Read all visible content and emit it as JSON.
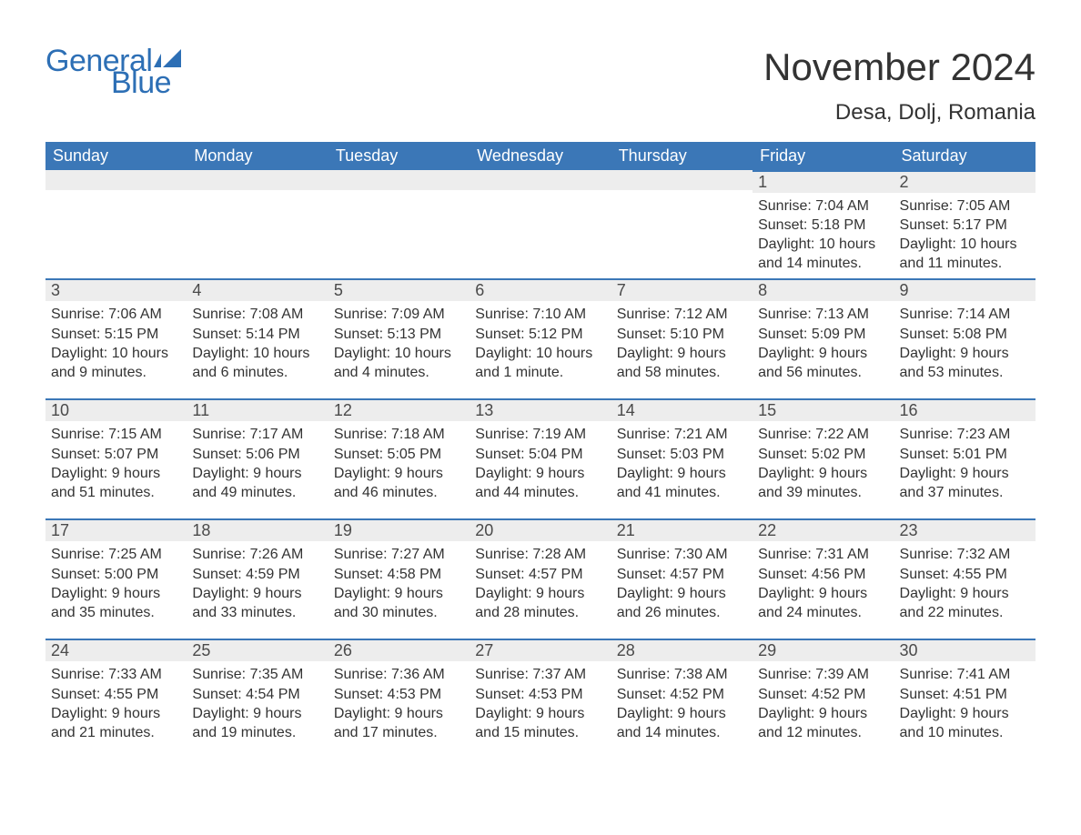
{
  "brand": {
    "general": "General",
    "blue": "Blue",
    "flag_color": "#2d6fb5"
  },
  "title": "November 2024",
  "location": "Desa, Dolj, Romania",
  "colors": {
    "header_bg": "#3b77b7",
    "header_text": "#ffffff",
    "daynum_bg": "#ededed",
    "border_top": "#3b77b7",
    "body_text": "#333333",
    "page_bg": "#ffffff"
  },
  "typography": {
    "title_fontsize": 42,
    "location_fontsize": 24,
    "header_fontsize": 18,
    "daynum_fontsize": 18,
    "body_fontsize": 16,
    "logo_fontsize": 34
  },
  "layout": {
    "columns": 7,
    "rows": 5,
    "leading_blanks": 5
  },
  "weekdays": [
    "Sunday",
    "Monday",
    "Tuesday",
    "Wednesday",
    "Thursday",
    "Friday",
    "Saturday"
  ],
  "days": [
    {
      "n": 1,
      "sunrise": "7:04 AM",
      "sunset": "5:18 PM",
      "daylight": "10 hours and 14 minutes."
    },
    {
      "n": 2,
      "sunrise": "7:05 AM",
      "sunset": "5:17 PM",
      "daylight": "10 hours and 11 minutes."
    },
    {
      "n": 3,
      "sunrise": "7:06 AM",
      "sunset": "5:15 PM",
      "daylight": "10 hours and 9 minutes."
    },
    {
      "n": 4,
      "sunrise": "7:08 AM",
      "sunset": "5:14 PM",
      "daylight": "10 hours and 6 minutes."
    },
    {
      "n": 5,
      "sunrise": "7:09 AM",
      "sunset": "5:13 PM",
      "daylight": "10 hours and 4 minutes."
    },
    {
      "n": 6,
      "sunrise": "7:10 AM",
      "sunset": "5:12 PM",
      "daylight": "10 hours and 1 minute."
    },
    {
      "n": 7,
      "sunrise": "7:12 AM",
      "sunset": "5:10 PM",
      "daylight": "9 hours and 58 minutes."
    },
    {
      "n": 8,
      "sunrise": "7:13 AM",
      "sunset": "5:09 PM",
      "daylight": "9 hours and 56 minutes."
    },
    {
      "n": 9,
      "sunrise": "7:14 AM",
      "sunset": "5:08 PM",
      "daylight": "9 hours and 53 minutes."
    },
    {
      "n": 10,
      "sunrise": "7:15 AM",
      "sunset": "5:07 PM",
      "daylight": "9 hours and 51 minutes."
    },
    {
      "n": 11,
      "sunrise": "7:17 AM",
      "sunset": "5:06 PM",
      "daylight": "9 hours and 49 minutes."
    },
    {
      "n": 12,
      "sunrise": "7:18 AM",
      "sunset": "5:05 PM",
      "daylight": "9 hours and 46 minutes."
    },
    {
      "n": 13,
      "sunrise": "7:19 AM",
      "sunset": "5:04 PM",
      "daylight": "9 hours and 44 minutes."
    },
    {
      "n": 14,
      "sunrise": "7:21 AM",
      "sunset": "5:03 PM",
      "daylight": "9 hours and 41 minutes."
    },
    {
      "n": 15,
      "sunrise": "7:22 AM",
      "sunset": "5:02 PM",
      "daylight": "9 hours and 39 minutes."
    },
    {
      "n": 16,
      "sunrise": "7:23 AM",
      "sunset": "5:01 PM",
      "daylight": "9 hours and 37 minutes."
    },
    {
      "n": 17,
      "sunrise": "7:25 AM",
      "sunset": "5:00 PM",
      "daylight": "9 hours and 35 minutes."
    },
    {
      "n": 18,
      "sunrise": "7:26 AM",
      "sunset": "4:59 PM",
      "daylight": "9 hours and 33 minutes."
    },
    {
      "n": 19,
      "sunrise": "7:27 AM",
      "sunset": "4:58 PM",
      "daylight": "9 hours and 30 minutes."
    },
    {
      "n": 20,
      "sunrise": "7:28 AM",
      "sunset": "4:57 PM",
      "daylight": "9 hours and 28 minutes."
    },
    {
      "n": 21,
      "sunrise": "7:30 AM",
      "sunset": "4:57 PM",
      "daylight": "9 hours and 26 minutes."
    },
    {
      "n": 22,
      "sunrise": "7:31 AM",
      "sunset": "4:56 PM",
      "daylight": "9 hours and 24 minutes."
    },
    {
      "n": 23,
      "sunrise": "7:32 AM",
      "sunset": "4:55 PM",
      "daylight": "9 hours and 22 minutes."
    },
    {
      "n": 24,
      "sunrise": "7:33 AM",
      "sunset": "4:55 PM",
      "daylight": "9 hours and 21 minutes."
    },
    {
      "n": 25,
      "sunrise": "7:35 AM",
      "sunset": "4:54 PM",
      "daylight": "9 hours and 19 minutes."
    },
    {
      "n": 26,
      "sunrise": "7:36 AM",
      "sunset": "4:53 PM",
      "daylight": "9 hours and 17 minutes."
    },
    {
      "n": 27,
      "sunrise": "7:37 AM",
      "sunset": "4:53 PM",
      "daylight": "9 hours and 15 minutes."
    },
    {
      "n": 28,
      "sunrise": "7:38 AM",
      "sunset": "4:52 PM",
      "daylight": "9 hours and 14 minutes."
    },
    {
      "n": 29,
      "sunrise": "7:39 AM",
      "sunset": "4:52 PM",
      "daylight": "9 hours and 12 minutes."
    },
    {
      "n": 30,
      "sunrise": "7:41 AM",
      "sunset": "4:51 PM",
      "daylight": "9 hours and 10 minutes."
    }
  ],
  "labels": {
    "sunrise": "Sunrise:",
    "sunset": "Sunset:",
    "daylight": "Daylight:"
  }
}
